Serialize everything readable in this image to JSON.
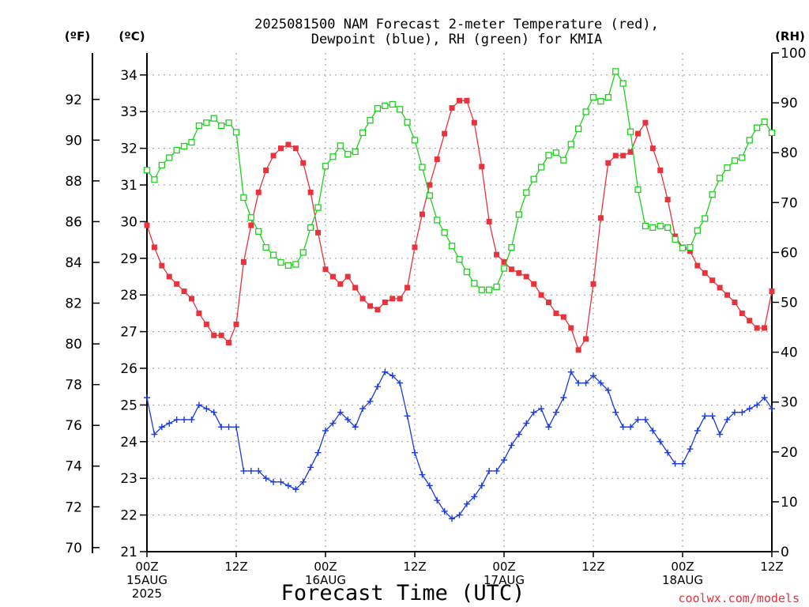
{
  "chart_data": {
    "type": "line",
    "title": "2025081500 NAM Forecast 2-meter Temperature (red),",
    "subtitle": "Dewpoint (blue), RH (green) for KMIA",
    "xlabel": "Forecast Time (UTC)",
    "axis_labels": {
      "fahrenheit": "(ºF)",
      "celsius": "(ºC)",
      "rh": "(RH)"
    },
    "credit": "coolwx.com/models",
    "grid": true,
    "x_range_hours": [
      0,
      84
    ],
    "x_ticks": [
      {
        "hour": 0,
        "lines": [
          "00Z",
          "15AUG",
          "2025"
        ]
      },
      {
        "hour": 12,
        "lines": [
          "12Z"
        ]
      },
      {
        "hour": 24,
        "lines": [
          "00Z",
          "16AUG"
        ]
      },
      {
        "hour": 36,
        "lines": [
          "12Z"
        ]
      },
      {
        "hour": 48,
        "lines": [
          "00Z",
          "17AUG"
        ]
      },
      {
        "hour": 60,
        "lines": [
          "12Z"
        ]
      },
      {
        "hour": 72,
        "lines": [
          "00Z",
          "18AUG"
        ]
      },
      {
        "hour": 84,
        "lines": [
          "12Z"
        ]
      }
    ],
    "celsius_ticks": [
      21,
      22,
      23,
      24,
      25,
      26,
      27,
      28,
      29,
      30,
      31,
      32,
      33,
      34
    ],
    "fahrenheit_ticks": [
      70,
      72,
      74,
      76,
      78,
      80,
      82,
      84,
      86,
      88,
      90,
      92
    ],
    "rh_ticks": [
      0,
      10,
      20,
      30,
      40,
      50,
      60,
      70,
      80,
      90,
      100
    ],
    "celsius_range": [
      21,
      34.6
    ],
    "rh_range": [
      0,
      100
    ],
    "series": [
      {
        "name": "Temperature",
        "units": "C",
        "color": "#e8323c",
        "marker": "filled-square",
        "values": [
          29.9,
          29.3,
          28.8,
          28.5,
          28.3,
          28.1,
          27.9,
          27.5,
          27.2,
          26.9,
          26.9,
          26.7,
          27.2,
          28.9,
          29.9,
          30.8,
          31.4,
          31.8,
          32.0,
          32.1,
          32.0,
          31.6,
          30.8,
          29.7,
          28.7,
          28.5,
          28.3,
          28.5,
          28.2,
          27.9,
          27.7,
          27.6,
          27.8,
          27.9,
          27.9,
          28.2,
          29.3,
          30.2,
          31.0,
          31.7,
          32.4,
          33.1,
          33.3,
          33.3,
          32.7,
          31.5,
          30.0,
          29.1,
          28.9,
          28.7,
          28.6,
          28.5,
          28.3,
          28.0,
          27.8,
          27.5,
          27.4,
          27.1,
          26.5,
          26.8,
          28.3,
          30.1,
          31.6,
          31.8,
          31.8,
          31.9,
          32.4,
          32.7,
          32.0,
          31.4,
          30.6,
          29.6,
          29.3,
          29.2,
          28.8,
          28.6,
          28.4,
          28.2,
          28.0,
          27.8,
          27.5,
          27.3,
          27.1,
          27.1,
          28.1
        ]
      },
      {
        "name": "Dewpoint",
        "units": "C",
        "color": "#1a3be0",
        "marker": "plus",
        "values": [
          25.2,
          24.2,
          24.4,
          24.5,
          24.6,
          24.6,
          24.6,
          25.0,
          24.9,
          24.8,
          24.4,
          24.4,
          24.4,
          23.2,
          23.2,
          23.2,
          23.0,
          22.9,
          22.9,
          22.8,
          22.7,
          22.9,
          23.3,
          23.7,
          24.3,
          24.5,
          24.8,
          24.6,
          24.4,
          24.9,
          25.1,
          25.5,
          25.9,
          25.8,
          25.6,
          24.7,
          23.7,
          23.1,
          22.8,
          22.4,
          22.1,
          21.9,
          22.0,
          22.3,
          22.5,
          22.8,
          23.2,
          23.2,
          23.5,
          23.9,
          24.2,
          24.5,
          24.8,
          24.9,
          24.4,
          24.8,
          25.2,
          25.9,
          25.6,
          25.6,
          25.8,
          25.6,
          25.4,
          24.8,
          24.4,
          24.4,
          24.6,
          24.6,
          24.3,
          24.0,
          23.7,
          23.4,
          23.4,
          23.8,
          24.3,
          24.7,
          24.7,
          24.2,
          24.6,
          24.8,
          24.8,
          24.9,
          25.0,
          25.2,
          24.9
        ]
      },
      {
        "name": "RH",
        "units": "%",
        "color": "#20d020",
        "marker": "open-square",
        "values": [
          76.5,
          74.6,
          77.5,
          79.0,
          80.5,
          81.3,
          82.1,
          85.4,
          86.0,
          86.9,
          85.4,
          86.0,
          84.1,
          71.0,
          67.0,
          64.2,
          61.0,
          59.5,
          58.0,
          57.4,
          57.6,
          60.0,
          65.0,
          69.0,
          77.3,
          79.2,
          81.4,
          79.7,
          80.2,
          84.0,
          86.5,
          88.9,
          89.4,
          89.7,
          88.7,
          86.1,
          82.5,
          77.1,
          71.4,
          66.5,
          64.0,
          61.3,
          58.6,
          56.1,
          53.8,
          52.5,
          52.5,
          53.1,
          56.8,
          61.0,
          67.6,
          72.0,
          74.7,
          77.1,
          79.5,
          80.0,
          78.5,
          81.7,
          84.8,
          88.2,
          91.1,
          90.3,
          91.1,
          96.3,
          93.9,
          84.2,
          72.6,
          65.3,
          65.0,
          65.3,
          65.0,
          62.6,
          60.9,
          61.0,
          64.4,
          66.8,
          71.6,
          74.9,
          77.0,
          78.4,
          79.0,
          82.5,
          85.0,
          86.2,
          84.0
        ]
      }
    ]
  }
}
